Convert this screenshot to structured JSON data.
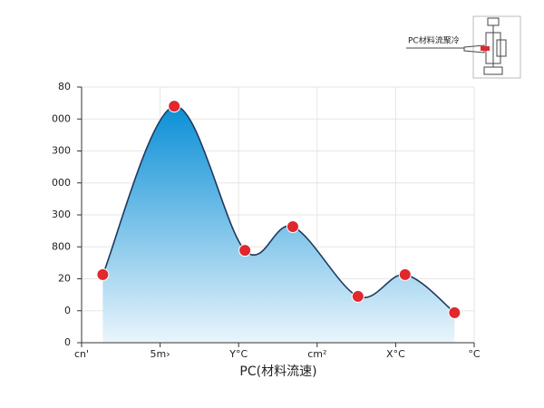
{
  "chart_data": {
    "type": "area",
    "annotation": "PC材料流聚冷",
    "xlabel": "PC(材料流速)",
    "x": [
      0.27,
      1.18,
      2.08,
      2.69,
      3.52,
      4.12,
      4.75
    ],
    "values": [
      2.13,
      7.4,
      2.89,
      3.63,
      1.45,
      2.13,
      0.94
    ],
    "color": "#0a8fd6",
    "line_color": "#1f3a5f",
    "marker_color": "#e0282e",
    "xlim": [
      0,
      5
    ],
    "xticks": [
      {
        "value": 0,
        "label": "cn'"
      },
      {
        "value": 1,
        "label": "5m›"
      },
      {
        "value": 2,
        "label": "Y°C"
      },
      {
        "value": 3,
        "label": "cm²"
      },
      {
        "value": 4,
        "label": "X°C"
      },
      {
        "value": 5,
        "label": "°C"
      }
    ],
    "ylim": [
      0,
      8
    ],
    "yticks": [
      0,
      {
        "value": 1,
        "label": "0"
      },
      {
        "value": 2,
        "label": "20"
      },
      {
        "value": 3,
        "label": "800"
      },
      {
        "value": 4,
        "label": "300"
      },
      {
        "value": 5,
        "label": "000"
      },
      {
        "value": 6,
        "label": "300"
      },
      {
        "value": 7,
        "label": "000"
      },
      {
        "value": 8,
        "label": "80"
      }
    ],
    "grid": true
  }
}
